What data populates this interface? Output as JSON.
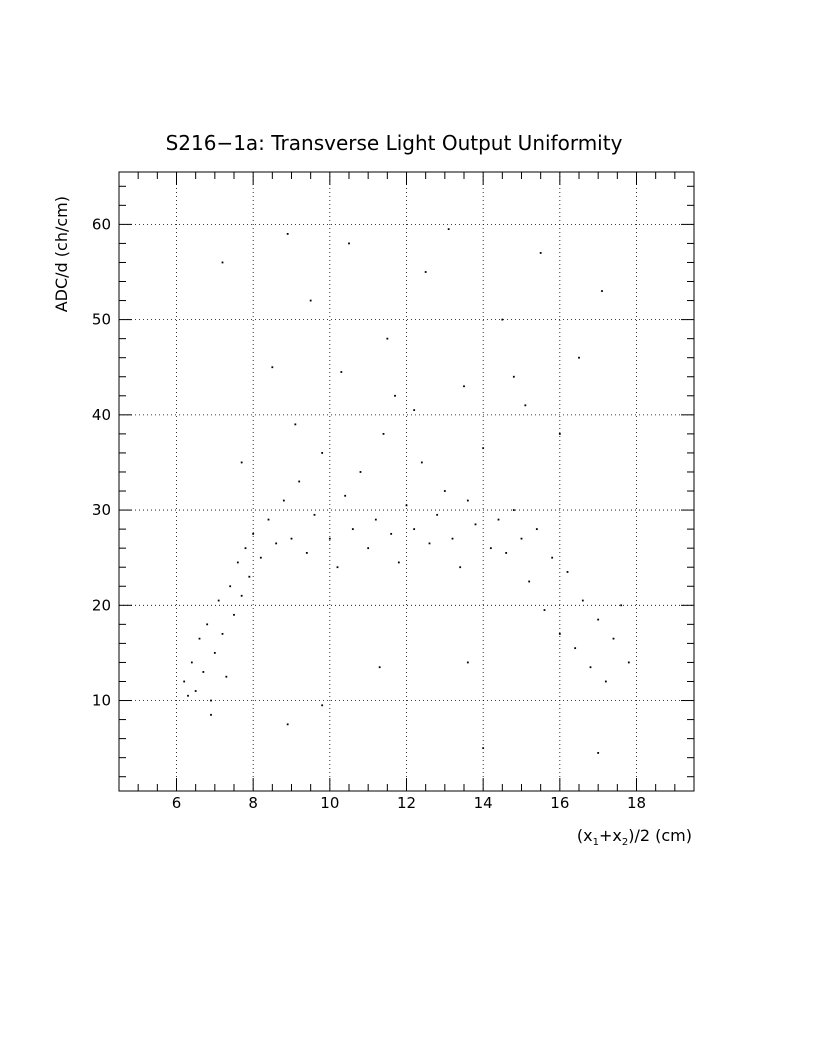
{
  "chart_data": {
    "type": "scatter",
    "title": "S216−1a: Transverse Light Output Uniformity",
    "xlabel": "(x1+x2)/2 (cm)",
    "xlabel_parts": {
      "open": "(x",
      "sub1": "1",
      "plus": "+x",
      "sub2": "2",
      "close": ")/2 (cm)"
    },
    "ylabel": "ADC/d (ch/cm)",
    "xlim": [
      4.5,
      19.5
    ],
    "ylim": [
      0.5,
      65.5
    ],
    "x_ticks": [
      6,
      8,
      10,
      12,
      14,
      16,
      18
    ],
    "y_ticks": [
      10,
      20,
      30,
      40,
      50,
      60
    ],
    "x_tick_labels": [
      "6",
      "8",
      "10",
      "12",
      "14",
      "16",
      "18"
    ],
    "y_tick_labels": [
      "10",
      "20",
      "30",
      "40",
      "50",
      "60"
    ],
    "grid": true,
    "grid_style": "dotted",
    "marker_color": "#000000",
    "series": [
      {
        "points": [
          [
            6.2,
            12.0
          ],
          [
            6.3,
            10.5
          ],
          [
            6.4,
            14.0
          ],
          [
            6.5,
            11.0
          ],
          [
            6.6,
            16.5
          ],
          [
            6.7,
            13.0
          ],
          [
            6.8,
            18.0
          ],
          [
            6.9,
            10.0
          ],
          [
            7.0,
            15.0
          ],
          [
            7.1,
            20.5
          ],
          [
            7.2,
            17.0
          ],
          [
            7.3,
            12.5
          ],
          [
            7.4,
            22.0
          ],
          [
            7.5,
            19.0
          ],
          [
            7.6,
            24.5
          ],
          [
            7.7,
            21.0
          ],
          [
            7.8,
            26.0
          ],
          [
            7.9,
            23.0
          ],
          [
            8.0,
            27.5
          ],
          [
            8.2,
            25.0
          ],
          [
            8.4,
            29.0
          ],
          [
            8.6,
            26.5
          ],
          [
            8.8,
            31.0
          ],
          [
            9.0,
            27.0
          ],
          [
            9.2,
            33.0
          ],
          [
            9.4,
            25.5
          ],
          [
            9.6,
            29.5
          ],
          [
            9.8,
            36.0
          ],
          [
            10.0,
            27.0
          ],
          [
            10.2,
            24.0
          ],
          [
            10.4,
            31.5
          ],
          [
            10.6,
            28.0
          ],
          [
            10.8,
            34.0
          ],
          [
            11.0,
            26.0
          ],
          [
            11.2,
            29.0
          ],
          [
            11.4,
            38.0
          ],
          [
            11.6,
            27.5
          ],
          [
            11.8,
            24.5
          ],
          [
            12.0,
            30.5
          ],
          [
            12.2,
            28.0
          ],
          [
            12.4,
            35.0
          ],
          [
            12.6,
            26.5
          ],
          [
            12.8,
            29.5
          ],
          [
            13.0,
            32.0
          ],
          [
            13.2,
            27.0
          ],
          [
            13.4,
            24.0
          ],
          [
            13.6,
            31.0
          ],
          [
            13.8,
            28.5
          ],
          [
            14.0,
            36.5
          ],
          [
            14.2,
            26.0
          ],
          [
            14.4,
            29.0
          ],
          [
            14.6,
            25.5
          ],
          [
            14.8,
            30.0
          ],
          [
            15.0,
            27.0
          ],
          [
            15.2,
            22.5
          ],
          [
            15.4,
            28.0
          ],
          [
            15.6,
            19.5
          ],
          [
            15.8,
            25.0
          ],
          [
            16.0,
            17.0
          ],
          [
            16.2,
            23.5
          ],
          [
            16.4,
            15.5
          ],
          [
            16.6,
            20.5
          ],
          [
            16.8,
            13.5
          ],
          [
            17.0,
            18.5
          ],
          [
            17.2,
            12.0
          ],
          [
            17.4,
            16.5
          ],
          [
            17.6,
            20.0
          ],
          [
            17.8,
            14.0
          ],
          [
            8.5,
            45.0
          ],
          [
            9.5,
            52.0
          ],
          [
            10.5,
            58.0
          ],
          [
            11.5,
            48.0
          ],
          [
            12.5,
            55.0
          ],
          [
            13.5,
            43.0
          ],
          [
            14.5,
            50.0
          ],
          [
            15.5,
            57.0
          ],
          [
            16.5,
            46.0
          ],
          [
            8.9,
            59.0
          ],
          [
            13.1,
            59.5
          ],
          [
            17.1,
            53.0
          ],
          [
            7.2,
            56.0
          ],
          [
            11.7,
            42.0
          ],
          [
            10.3,
            44.5
          ],
          [
            15.1,
            41.0
          ],
          [
            6.9,
            8.5
          ],
          [
            9.8,
            9.5
          ],
          [
            14.0,
            5.0
          ],
          [
            17.0,
            4.5
          ],
          [
            8.9,
            7.5
          ],
          [
            11.3,
            13.5
          ],
          [
            13.6,
            14.0
          ],
          [
            12.2,
            40.5
          ],
          [
            16.0,
            38.0
          ],
          [
            7.7,
            35.0
          ],
          [
            9.1,
            39.0
          ],
          [
            14.8,
            44.0
          ]
        ]
      }
    ]
  }
}
